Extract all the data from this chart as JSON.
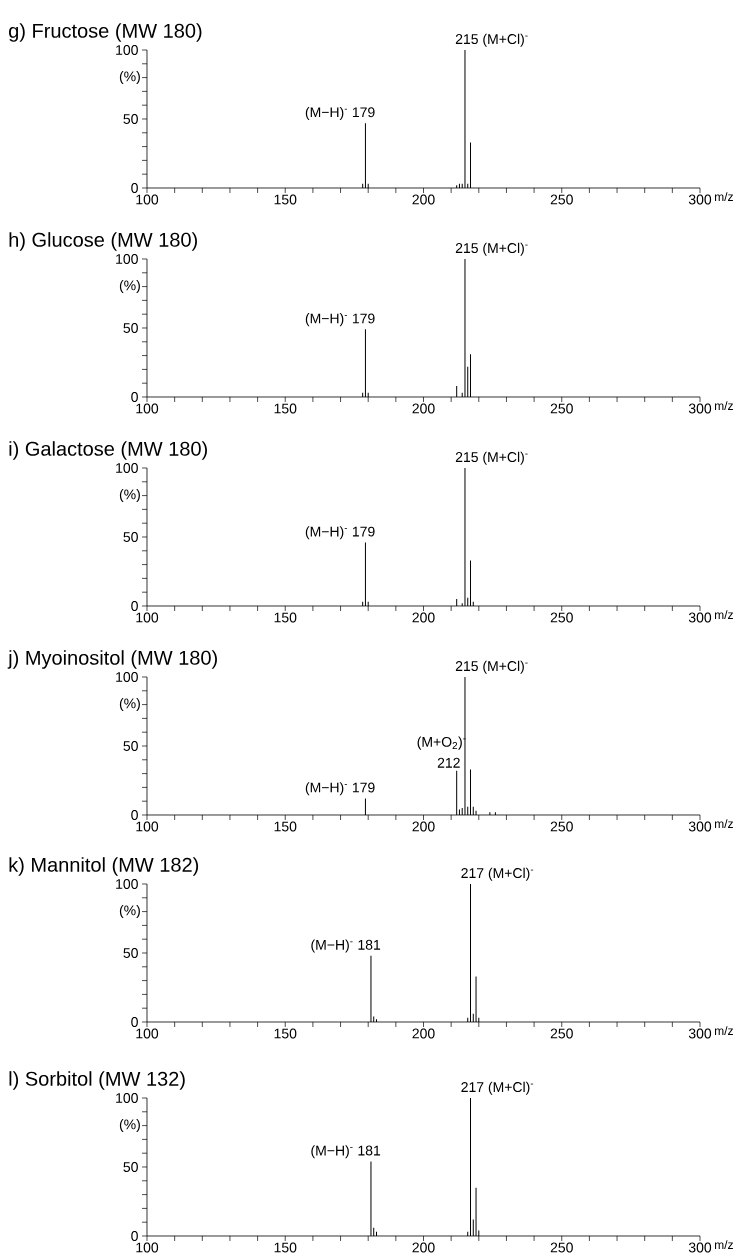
{
  "chart_data": [
    {
      "type": "bar",
      "title": "g) Fructose (MW 180)",
      "xlabel": "m/z",
      "ylabel": "(%)",
      "xlim": [
        100,
        300
      ],
      "ylim": [
        0,
        100
      ],
      "xticks": [
        100,
        {
          "value": 110,
          "label": null
        },
        {
          "value": 120,
          "label": null
        },
        {
          "value": 130,
          "label": null
        },
        {
          "value": 140,
          "label": null
        },
        150,
        {
          "value": 160,
          "label": null
        },
        {
          "value": 170,
          "label": null
        },
        {
          "value": 180,
          "label": null
        },
        {
          "value": 190,
          "label": null
        },
        200,
        {
          "value": 210,
          "label": null
        },
        {
          "value": 220,
          "label": null
        },
        {
          "value": 230,
          "label": null
        },
        {
          "value": 240,
          "label": null
        },
        250,
        {
          "value": 260,
          "label": null
        },
        {
          "value": 270,
          "label": null
        },
        {
          "value": 280,
          "label": null
        },
        {
          "value": 290,
          "label": null
        },
        300
      ],
      "yticks": [
        0,
        {
          "value": 10,
          "label": null
        },
        {
          "value": 20,
          "label": null
        },
        {
          "value": 30,
          "label": null
        },
        {
          "value": 40,
          "label": null
        },
        50,
        {
          "value": 60,
          "label": null
        },
        {
          "value": 70,
          "label": null
        },
        {
          "value": 80,
          "label": null
        },
        {
          "value": 90,
          "label": null
        },
        100
      ],
      "series": [
        {
          "color": "#000000",
          "x": [
            178,
            179,
            180,
            212,
            213,
            214,
            215,
            216,
            217
          ],
          "values": [
            3,
            47,
            3,
            2,
            3,
            3,
            100,
            3,
            33
          ]
        }
      ],
      "annotations": [
        {
          "text": "215 (M+Cl)$^{-}$",
          "x": 215,
          "y": 100
        },
        {
          "text": "(M−H)$^{-}$ 179",
          "x": 179,
          "y": 47
        }
      ]
    },
    {
      "type": "bar",
      "title": "h) Glucose (MW 180)",
      "xlabel": "m/z",
      "ylabel": "(%)",
      "xlim": [
        100,
        300
      ],
      "ylim": [
        0,
        100
      ],
      "xticks": [
        100,
        {
          "value": 110,
          "label": null
        },
        {
          "value": 120,
          "label": null
        },
        {
          "value": 130,
          "label": null
        },
        {
          "value": 140,
          "label": null
        },
        150,
        {
          "value": 160,
          "label": null
        },
        {
          "value": 170,
          "label": null
        },
        {
          "value": 180,
          "label": null
        },
        {
          "value": 190,
          "label": null
        },
        200,
        {
          "value": 210,
          "label": null
        },
        {
          "value": 220,
          "label": null
        },
        {
          "value": 230,
          "label": null
        },
        {
          "value": 240,
          "label": null
        },
        250,
        {
          "value": 260,
          "label": null
        },
        {
          "value": 270,
          "label": null
        },
        {
          "value": 280,
          "label": null
        },
        {
          "value": 290,
          "label": null
        },
        300
      ],
      "yticks": [
        0,
        {
          "value": 10,
          "label": null
        },
        {
          "value": 20,
          "label": null
        },
        {
          "value": 30,
          "label": null
        },
        {
          "value": 40,
          "label": null
        },
        50,
        {
          "value": 60,
          "label": null
        },
        {
          "value": 70,
          "label": null
        },
        {
          "value": 80,
          "label": null
        },
        {
          "value": 90,
          "label": null
        },
        100
      ],
      "series": [
        {
          "color": "#000000",
          "x": [
            178,
            179,
            180,
            212,
            214,
            215,
            216,
            217
          ],
          "values": [
            3,
            49,
            3,
            8,
            3,
            100,
            22,
            31
          ]
        }
      ],
      "annotations": [
        {
          "text": "215 (M+Cl)$^{-}$",
          "x": 215,
          "y": 100
        },
        {
          "text": "(M−H)$^{-}$ 179",
          "x": 179,
          "y": 49
        }
      ]
    },
    {
      "type": "bar",
      "title": "i) Galactose (MW 180)",
      "xlabel": "m/z",
      "ylabel": "(%)",
      "xlim": [
        100,
        300
      ],
      "ylim": [
        0,
        100
      ],
      "xticks": [
        100,
        {
          "value": 110,
          "label": null
        },
        {
          "value": 120,
          "label": null
        },
        {
          "value": 130,
          "label": null
        },
        {
          "value": 140,
          "label": null
        },
        150,
        {
          "value": 160,
          "label": null
        },
        {
          "value": 170,
          "label": null
        },
        {
          "value": 180,
          "label": null
        },
        {
          "value": 190,
          "label": null
        },
        200,
        {
          "value": 210,
          "label": null
        },
        {
          "value": 220,
          "label": null
        },
        {
          "value": 230,
          "label": null
        },
        {
          "value": 240,
          "label": null
        },
        250,
        {
          "value": 260,
          "label": null
        },
        {
          "value": 270,
          "label": null
        },
        {
          "value": 280,
          "label": null
        },
        {
          "value": 290,
          "label": null
        },
        300
      ],
      "yticks": [
        0,
        {
          "value": 10,
          "label": null
        },
        {
          "value": 20,
          "label": null
        },
        {
          "value": 30,
          "label": null
        },
        {
          "value": 40,
          "label": null
        },
        50,
        {
          "value": 60,
          "label": null
        },
        {
          "value": 70,
          "label": null
        },
        {
          "value": 80,
          "label": null
        },
        {
          "value": 90,
          "label": null
        },
        100
      ],
      "series": [
        {
          "color": "#000000",
          "x": [
            178,
            179,
            180,
            212,
            214,
            215,
            216,
            217,
            218
          ],
          "values": [
            3,
            46,
            3,
            5,
            2,
            100,
            6,
            33,
            3
          ]
        }
      ],
      "annotations": [
        {
          "text": "215 (M+Cl)$^{-}$",
          "x": 215,
          "y": 100
        },
        {
          "text": "(M−H)$^{-}$ 179",
          "x": 179,
          "y": 46
        }
      ]
    },
    {
      "type": "bar",
      "title": "j) Myoinositol (MW 180)",
      "xlabel": "m/z",
      "ylabel": "(%)",
      "xlim": [
        100,
        300
      ],
      "ylim": [
        0,
        100
      ],
      "xticks": [
        100,
        {
          "value": 110,
          "label": null
        },
        {
          "value": 120,
          "label": null
        },
        {
          "value": 130,
          "label": null
        },
        {
          "value": 140,
          "label": null
        },
        150,
        {
          "value": 160,
          "label": null
        },
        {
          "value": 170,
          "label": null
        },
        {
          "value": 180,
          "label": null
        },
        {
          "value": 190,
          "label": null
        },
        200,
        {
          "value": 210,
          "label": null
        },
        {
          "value": 220,
          "label": null
        },
        {
          "value": 230,
          "label": null
        },
        {
          "value": 240,
          "label": null
        },
        250,
        {
          "value": 260,
          "label": null
        },
        {
          "value": 270,
          "label": null
        },
        {
          "value": 280,
          "label": null
        },
        {
          "value": 290,
          "label": null
        },
        300
      ],
      "yticks": [
        0,
        {
          "value": 10,
          "label": null
        },
        {
          "value": 20,
          "label": null
        },
        {
          "value": 30,
          "label": null
        },
        {
          "value": 40,
          "label": null
        },
        50,
        {
          "value": 60,
          "label": null
        },
        {
          "value": 70,
          "label": null
        },
        {
          "value": 80,
          "label": null
        },
        {
          "value": 90,
          "label": null
        },
        100
      ],
      "series": [
        {
          "color": "#000000",
          "x": [
            179,
            212,
            213,
            214,
            215,
            216,
            217,
            218,
            219,
            224,
            226
          ],
          "values": [
            12,
            32,
            4,
            5,
            100,
            6,
            33,
            6,
            3,
            2,
            2
          ]
        }
      ],
      "annotations": [
        {
          "text": "215 (M+Cl)$^{-}$",
          "x": 215,
          "y": 100
        },
        {
          "text": "(M−H)$^{-}$ 179",
          "x": 179,
          "y": 12
        },
        {
          "text": "(M+O$_{2}$)$^{-}$",
          "x": 212,
          "y": 32
        },
        {
          "text": "212",
          "x": 212,
          "y": 32
        }
      ]
    },
    {
      "type": "bar",
      "title": "k) Mannitol (MW 182)",
      "xlabel": "m/z",
      "ylabel": "(%)",
      "xlim": [
        100,
        300
      ],
      "ylim": [
        0,
        100
      ],
      "xticks": [
        100,
        {
          "value": 110,
          "label": null
        },
        {
          "value": 120,
          "label": null
        },
        {
          "value": 130,
          "label": null
        },
        {
          "value": 140,
          "label": null
        },
        150,
        {
          "value": 160,
          "label": null
        },
        {
          "value": 170,
          "label": null
        },
        {
          "value": 180,
          "label": null
        },
        {
          "value": 190,
          "label": null
        },
        200,
        {
          "value": 210,
          "label": null
        },
        {
          "value": 220,
          "label": null
        },
        {
          "value": 230,
          "label": null
        },
        {
          "value": 240,
          "label": null
        },
        250,
        {
          "value": 260,
          "label": null
        },
        {
          "value": 270,
          "label": null
        },
        {
          "value": 280,
          "label": null
        },
        {
          "value": 290,
          "label": null
        },
        300
      ],
      "yticks": [
        0,
        {
          "value": 10,
          "label": null
        },
        {
          "value": 20,
          "label": null
        },
        {
          "value": 30,
          "label": null
        },
        {
          "value": 40,
          "label": null
        },
        50,
        {
          "value": 60,
          "label": null
        },
        {
          "value": 70,
          "label": null
        },
        {
          "value": 80,
          "label": null
        },
        {
          "value": 90,
          "label": null
        },
        100
      ],
      "series": [
        {
          "color": "#000000",
          "x": [
            181,
            182,
            183,
            216,
            217,
            218,
            219,
            220
          ],
          "values": [
            48,
            4,
            2,
            3,
            100,
            6,
            33,
            3
          ]
        }
      ],
      "annotations": [
        {
          "text": "217 (M+Cl)$^{-}$",
          "x": 217,
          "y": 100
        },
        {
          "text": "(M−H)$^{-}$ 181",
          "x": 181,
          "y": 48
        }
      ]
    },
    {
      "type": "bar",
      "title": "l) Sorbitol (MW 132)",
      "xlabel": "m/z",
      "ylabel": "(%)",
      "xlim": [
        100,
        300
      ],
      "ylim": [
        0,
        100
      ],
      "xticks": [
        100,
        {
          "value": 110,
          "label": null
        },
        {
          "value": 120,
          "label": null
        },
        {
          "value": 130,
          "label": null
        },
        {
          "value": 140,
          "label": null
        },
        150,
        {
          "value": 160,
          "label": null
        },
        {
          "value": 170,
          "label": null
        },
        {
          "value": 180,
          "label": null
        },
        {
          "value": 190,
          "label": null
        },
        200,
        {
          "value": 210,
          "label": null
        },
        {
          "value": 220,
          "label": null
        },
        {
          "value": 230,
          "label": null
        },
        {
          "value": 240,
          "label": null
        },
        250,
        {
          "value": 260,
          "label": null
        },
        {
          "value": 270,
          "label": null
        },
        {
          "value": 280,
          "label": null
        },
        {
          "value": 290,
          "label": null
        },
        300
      ],
      "yticks": [
        0,
        {
          "value": 10,
          "label": null
        },
        {
          "value": 20,
          "label": null
        },
        {
          "value": 30,
          "label": null
        },
        {
          "value": 40,
          "label": null
        },
        50,
        {
          "value": 60,
          "label": null
        },
        {
          "value": 70,
          "label": null
        },
        {
          "value": 80,
          "label": null
        },
        {
          "value": 90,
          "label": null
        },
        100
      ],
      "series": [
        {
          "color": "#000000",
          "x": [
            181,
            182,
            183,
            216,
            217,
            218,
            219,
            220
          ],
          "values": [
            54,
            6,
            3,
            3,
            100,
            12,
            35,
            4
          ]
        }
      ],
      "annotations": [
        {
          "text": "217 (M+Cl)$^{-}$",
          "x": 217,
          "y": 100
        },
        {
          "text": "(M−H)$^{-}$ 181",
          "x": 181,
          "y": 54
        }
      ]
    }
  ]
}
